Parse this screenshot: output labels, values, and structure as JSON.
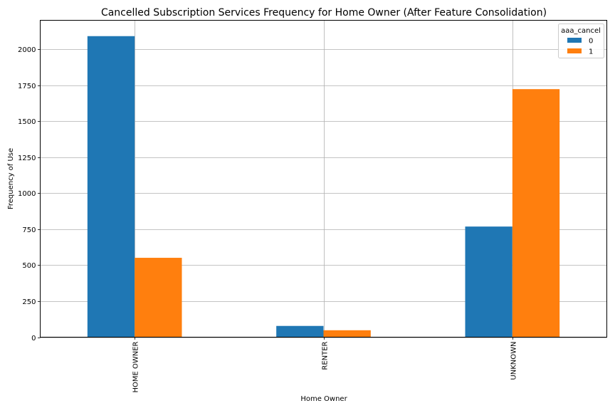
{
  "chart_data": {
    "type": "bar",
    "title": "Cancelled Subscription Services Frequency for Home Owner (After Feature Consolidation)",
    "xlabel": "Home Owner",
    "ylabel": "Frequency of Use",
    "categories": [
      "HOME OWNER",
      "RENTER",
      "UNKNOWN"
    ],
    "series": [
      {
        "name": "0",
        "color": "#1f77b4",
        "values": [
          2090,
          78,
          768
        ]
      },
      {
        "name": "1",
        "color": "#ff7f0e",
        "values": [
          551,
          48,
          1722
        ]
      }
    ],
    "ylim": [
      0,
      2200
    ],
    "yticks": [
      0,
      250,
      500,
      750,
      1000,
      1250,
      1500,
      1750,
      2000
    ],
    "ytick_labels": [
      "0",
      "250",
      "500",
      "750",
      "1000",
      "1250",
      "1500",
      "1750",
      "2000"
    ],
    "grid": true,
    "legend": {
      "title": "aaa_cancel",
      "position": "top-right"
    }
  }
}
